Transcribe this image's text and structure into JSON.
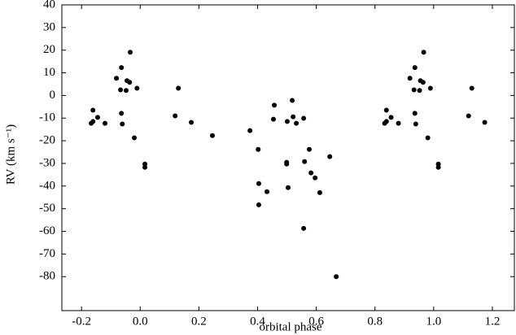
{
  "chart_data": {
    "type": "scatter",
    "xlabel": "orbital phase",
    "ylabel": "RV (km s⁻¹)",
    "color": "#000000",
    "x": [
      -0.167,
      -0.161,
      -0.161,
      -0.145,
      -0.12,
      -0.081,
      -0.064,
      -0.067,
      -0.064,
      -0.061,
      -0.045,
      -0.036,
      -0.048,
      -0.034,
      -0.011,
      -0.02,
      0.016,
      0.016,
      0.119,
      0.13,
      0.174,
      0.246,
      0.374,
      0.402,
      0.404,
      0.404,
      0.432,
      0.457,
      0.454,
      0.499,
      0.499,
      0.501,
      0.504,
      0.518,
      0.521,
      0.532,
      0.557,
      0.56,
      0.557,
      0.576,
      0.582,
      0.596,
      0.612,
      0.646,
      0.668,
      0.833,
      0.839,
      0.839,
      0.855,
      0.88,
      0.919,
      0.936,
      0.933,
      0.936,
      0.939,
      0.955,
      0.964,
      0.952,
      0.966,
      0.989,
      0.98,
      1.016,
      1.016,
      1.119,
      1.13,
      1.174
    ],
    "values": [
      -12.3,
      -6.5,
      -11.5,
      -9.7,
      -12.3,
      7.6,
      12.3,
      2.5,
      -7.9,
      -12.6,
      6.5,
      5.8,
      2.2,
      19.1,
      3.2,
      -18.7,
      -30.3,
      -31.7,
      -9.0,
      3.2,
      -11.9,
      -17.7,
      -15.5,
      -23.8,
      -38.9,
      -48.3,
      -42.5,
      -4.3,
      -10.5,
      -29.5,
      -30.3,
      -11.5,
      -40.7,
      -2.2,
      -9.4,
      -12.3,
      -10.1,
      -29.2,
      -58.7,
      -23.8,
      -34.2,
      -36.4,
      -42.9,
      -27.0,
      -80.0,
      -12.3,
      -6.5,
      -11.5,
      -9.7,
      -12.3,
      7.6,
      12.3,
      2.5,
      -7.9,
      -12.6,
      6.5,
      5.8,
      2.2,
      19.1,
      3.2,
      -18.7,
      -30.3,
      -31.7,
      -9.0,
      3.2,
      -11.9
    ],
    "xlim": [
      -0.267,
      1.275
    ],
    "ylim": [
      -95,
      40
    ],
    "xticks": [
      -0.2,
      {
        "value": 0,
        "label": "0.0"
      },
      0.2,
      0.4,
      0.6,
      0.8,
      {
        "value": 1,
        "label": "1.0"
      },
      1.2
    ],
    "yticks": [
      40,
      30,
      20,
      10,
      0,
      -10,
      -20,
      -30,
      -40,
      -50,
      -60,
      -70,
      -80
    ],
    "grid": false
  }
}
